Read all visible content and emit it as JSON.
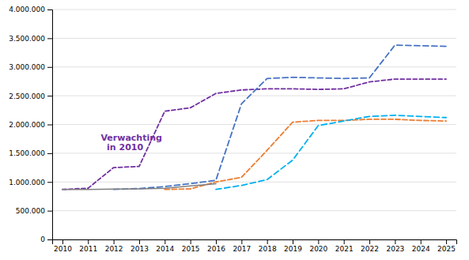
{
  "chart_data": {
    "type": "line",
    "x": [
      2010,
      2011,
      2012,
      2013,
      2014,
      2015,
      2016,
      2017,
      2018,
      2019,
      2020,
      2021,
      2022,
      2023,
      2024,
      2025
    ],
    "series": [
      {
        "color": "#7030A0",
        "line_style": "dashed",
        "values": [
          870000,
          890000,
          1250000,
          1270000,
          2230000,
          2290000,
          2540000,
          2600000,
          2620000,
          2620000,
          2610000,
          2620000,
          2740000,
          2790000,
          2790000,
          2790000
        ]
      },
      {
        "color": "#4472C4",
        "line_style": "dashed",
        "values": [
          null,
          null,
          870000,
          885000,
          920000,
          970000,
          1030000,
          2360000,
          2800000,
          2820000,
          2810000,
          2800000,
          2810000,
          3380000,
          3370000,
          3360000
        ]
      },
      {
        "color": "#ED7D31",
        "line_style": "dashed",
        "values": [
          null,
          null,
          null,
          null,
          870000,
          880000,
          1000000,
          1080000,
          1550000,
          2040000,
          2070000,
          2070000,
          2090000,
          2090000,
          2070000,
          2060000
        ]
      },
      {
        "color": "#00B0F0",
        "line_style": "dashed",
        "values": [
          null,
          null,
          null,
          null,
          null,
          null,
          870000,
          940000,
          1040000,
          1380000,
          1980000,
          2060000,
          2140000,
          2160000,
          2140000,
          2120000
        ]
      },
      {
        "color": "#7F7F7F",
        "line_style": "solid",
        "values": [
          870000,
          870000,
          875000,
          880000,
          890000,
          930000,
          970000,
          null,
          null,
          null,
          null,
          null,
          null,
          null,
          null,
          null
        ]
      }
    ],
    "annotations": [
      {
        "text": "Verwachting\n  in 2010",
        "x": 2011.5,
        "y": 1680000,
        "color": "#7030A0"
      }
    ],
    "xlim": [
      2009.6,
      2025.4
    ],
    "xticks": [
      2010,
      2011,
      2012,
      2013,
      2014,
      2015,
      2016,
      2017,
      2018,
      2019,
      2020,
      2021,
      2022,
      2023,
      2024,
      2025
    ],
    "ylim": [
      0,
      4000000
    ],
    "yticks": [
      0,
      {
        "value": 500000,
        "label": "500.000"
      },
      {
        "value": 1000000,
        "label": "1.000.000"
      },
      {
        "value": 1500000,
        "label": "1.500.000"
      },
      {
        "value": 2000000,
        "label": "2.000.000"
      },
      {
        "value": 2500000,
        "label": "2.500.000"
      },
      {
        "value": 3000000,
        "label": "3.000.000"
      },
      {
        "value": 3500000,
        "label": "3.500.000"
      },
      {
        "value": 4000000,
        "label": "4.000.000"
      }
    ],
    "grid": "y"
  }
}
